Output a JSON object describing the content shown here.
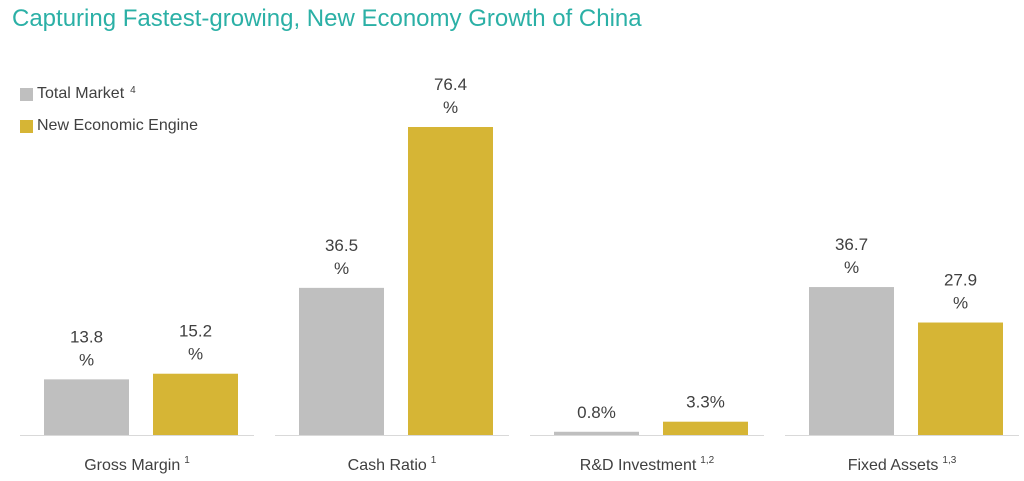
{
  "title": "Capturing Fastest-growing, New Economy Growth of China",
  "colors": {
    "title": "#2bb0a6",
    "total": "#bfbfbf",
    "engine": "#d6b535",
    "baseline": "#d9d9d9",
    "text": "#404040"
  },
  "legend": [
    {
      "label": "Total Market",
      "sup": "4"
    },
    {
      "label": "New Economic Engine",
      "sup": ""
    }
  ],
  "chart_data": {
    "type": "bar",
    "title": "Capturing Fastest-growing, New Economy Growth of China",
    "categories": [
      {
        "label": "Gross Margin",
        "sup": "1"
      },
      {
        "label": "Cash Ratio",
        "sup": "1"
      },
      {
        "label": "R&D Investment",
        "sup": "1,2"
      },
      {
        "label": "Fixed Assets",
        "sup": "1,3"
      }
    ],
    "series": [
      {
        "name": "Total Market",
        "values": [
          13.8,
          36.5,
          0.8,
          36.7
        ],
        "labels": [
          "13.8\n%",
          "36.5\n%",
          "0.8%",
          "36.7\n%"
        ]
      },
      {
        "name": "New Economic Engine",
        "values": [
          15.2,
          76.4,
          3.3,
          27.9
        ],
        "labels": [
          "15.2\n%",
          "76.4\n%",
          "3.3%",
          "27.9\n%"
        ]
      }
    ],
    "legend_position": "top-left",
    "grid": false
  }
}
